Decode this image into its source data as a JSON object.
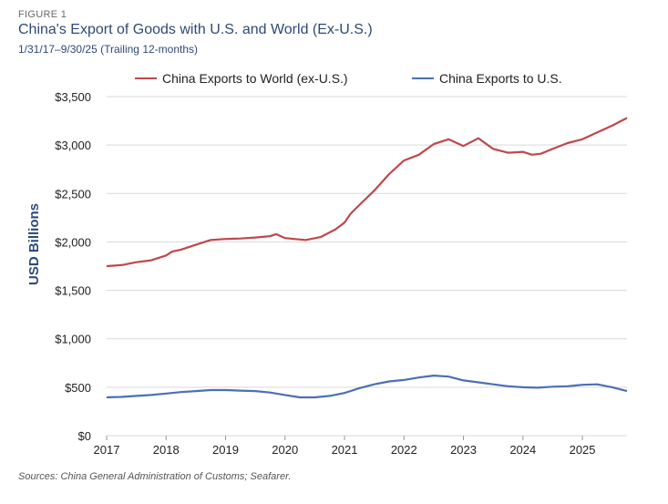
{
  "figure_label": "FIGURE 1",
  "title": "China's Export of Goods with U.S. and World (Ex-U.S.)",
  "subtitle": "1/31/17–9/30/25 (Trailing 12-months)",
  "source": "Sources: China General Administration of Customs; Seafarer.",
  "colors": {
    "world": "#c0474a",
    "us": "#4c6fb5",
    "grid": "#d9d9d9"
  },
  "chart_data": {
    "type": "line",
    "title": "China's Export of Goods with U.S. and World (Ex-U.S.)",
    "ylabel": "USD Billions",
    "xlabel": "",
    "ylim": [
      0,
      3500
    ],
    "xlim": [
      2017,
      2025.75
    ],
    "y_ticks": [
      0,
      500,
      1000,
      1500,
      2000,
      2500,
      3000,
      3500
    ],
    "y_tick_labels": [
      "$0",
      "$500",
      "$1,000",
      "$1,500",
      "$2,000",
      "$2,500",
      "$3,000",
      "$3,500"
    ],
    "x_ticks": [
      2017,
      2018,
      2019,
      2020,
      2021,
      2022,
      2023,
      2024,
      2025
    ],
    "x_tick_labels": [
      "2017",
      "2018",
      "2019",
      "2020",
      "2021",
      "2022",
      "2023",
      "2024",
      "2025"
    ],
    "grid": "horizontal",
    "legend_position": "top",
    "series": [
      {
        "name": "China Exports to World (ex-U.S.)",
        "color": "#c0474a",
        "x": [
          2017.0,
          2017.25,
          2017.5,
          2017.75,
          2018.0,
          2018.1,
          2018.25,
          2018.5,
          2018.75,
          2019.0,
          2019.25,
          2019.5,
          2019.75,
          2019.85,
          2020.0,
          2020.15,
          2020.35,
          2020.6,
          2020.85,
          2021.0,
          2021.1,
          2021.25,
          2021.5,
          2021.75,
          2022.0,
          2022.25,
          2022.5,
          2022.75,
          2023.0,
          2023.25,
          2023.5,
          2023.75,
          2024.0,
          2024.15,
          2024.3,
          2024.5,
          2024.75,
          2025.0,
          2025.25,
          2025.5,
          2025.75
        ],
        "values": [
          1750,
          1760,
          1790,
          1810,
          1860,
          1900,
          1920,
          1970,
          2020,
          2030,
          2035,
          2045,
          2060,
          2080,
          2040,
          2030,
          2020,
          2050,
          2130,
          2200,
          2290,
          2380,
          2530,
          2700,
          2840,
          2900,
          3010,
          3060,
          2990,
          3070,
          2960,
          2920,
          2930,
          2900,
          2910,
          2960,
          3020,
          3060,
          3130,
          3200,
          3280
        ]
      },
      {
        "name": "China Exports to U.S.",
        "color": "#4c6fb5",
        "x": [
          2017.0,
          2017.25,
          2017.5,
          2017.75,
          2018.0,
          2018.25,
          2018.5,
          2018.75,
          2019.0,
          2019.25,
          2019.5,
          2019.75,
          2020.0,
          2020.25,
          2020.5,
          2020.75,
          2021.0,
          2021.25,
          2021.5,
          2021.75,
          2022.0,
          2022.25,
          2022.5,
          2022.75,
          2023.0,
          2023.25,
          2023.5,
          2023.75,
          2024.0,
          2024.25,
          2024.5,
          2024.75,
          2025.0,
          2025.25,
          2025.5,
          2025.75
        ],
        "values": [
          395,
          400,
          410,
          420,
          435,
          450,
          460,
          470,
          470,
          465,
          460,
          445,
          420,
          395,
          395,
          410,
          440,
          490,
          530,
          560,
          575,
          600,
          620,
          610,
          570,
          550,
          530,
          510,
          500,
          495,
          505,
          510,
          525,
          530,
          500,
          460
        ]
      }
    ]
  }
}
